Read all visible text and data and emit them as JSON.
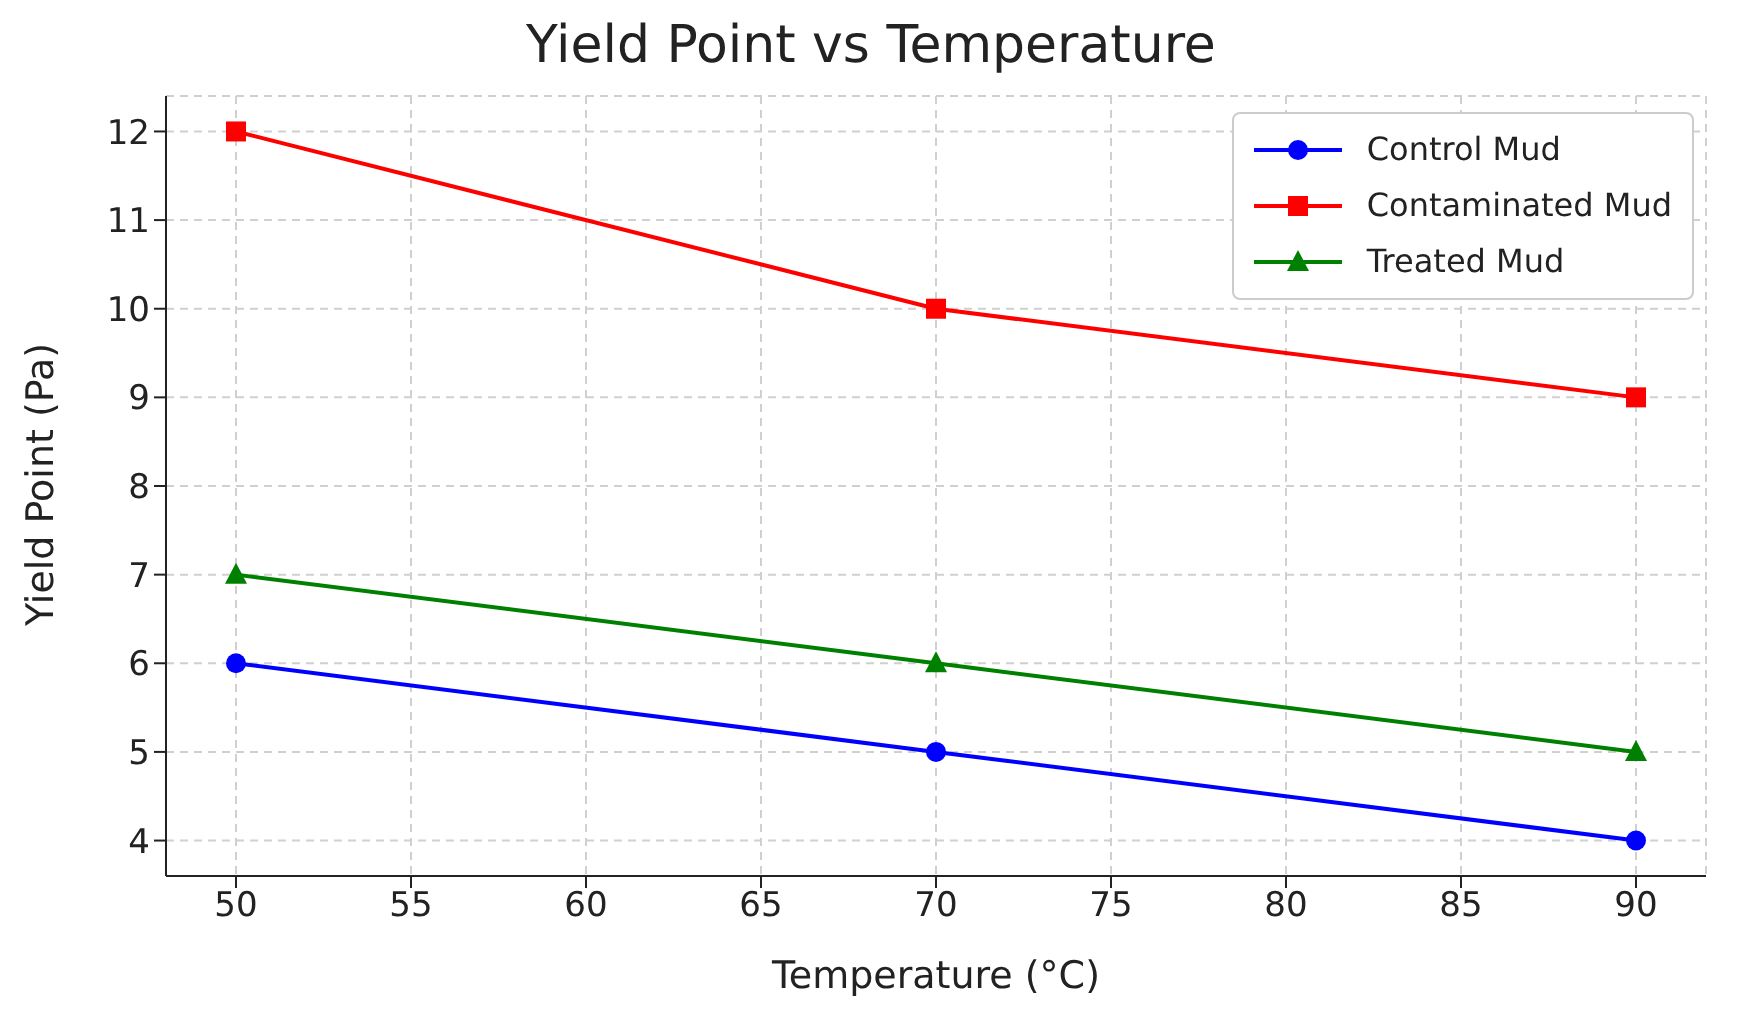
{
  "chart_data": {
    "type": "line",
    "title": "Yield Point vs Temperature",
    "xlabel": "Temperature (°C)",
    "ylabel": "Yield Point (Pa)",
    "x": [
      50,
      70,
      90
    ],
    "series": [
      {
        "name": "Control Mud",
        "color": "#0000ff",
        "marker": "circle",
        "values": [
          6,
          5,
          4
        ]
      },
      {
        "name": "Contaminated Mud",
        "color": "#ff0000",
        "marker": "square",
        "values": [
          12,
          10,
          9
        ]
      },
      {
        "name": "Treated Mud",
        "color": "#008000",
        "marker": "triangle",
        "values": [
          7,
          6,
          5
        ]
      }
    ],
    "xlim": [
      48,
      92
    ],
    "xticks": [
      50,
      55,
      60,
      65,
      70,
      75,
      80,
      85,
      90
    ],
    "ylim": [
      3.6,
      12.4
    ],
    "yticks": [
      4,
      5,
      6,
      7,
      8,
      9,
      10,
      11,
      12
    ],
    "grid": true,
    "legend": "top right"
  }
}
